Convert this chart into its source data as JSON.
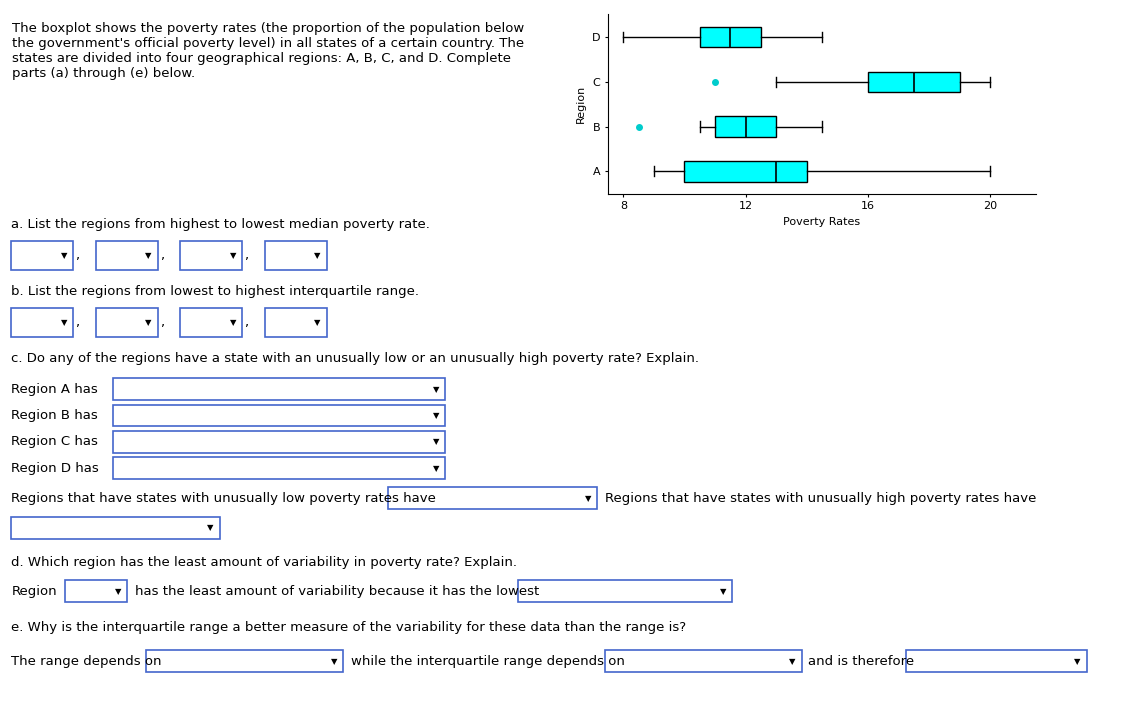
{
  "regions": [
    "A",
    "B",
    "C",
    "D"
  ],
  "boxes": {
    "A": {
      "whislo": 9.0,
      "q1": 10.0,
      "med": 13.0,
      "q3": 14.0,
      "whishi": 20.0,
      "fliers": []
    },
    "B": {
      "whislo": 10.5,
      "q1": 11.0,
      "med": 12.0,
      "q3": 13.0,
      "whishi": 14.5,
      "fliers": [
        8.5
      ]
    },
    "C": {
      "whislo": 13.0,
      "q1": 16.0,
      "med": 17.5,
      "q3": 19.0,
      "whishi": 20.0,
      "fliers": [
        11.0
      ]
    },
    "D": {
      "whislo": 8.0,
      "q1": 10.5,
      "med": 11.5,
      "q3": 12.5,
      "whishi": 14.5,
      "fliers": []
    }
  },
  "xlim": [
    7.5,
    21.5
  ],
  "xticks": [
    8,
    12,
    16,
    20
  ],
  "xlabel": "Poverty Rates",
  "ylabel": "Region",
  "box_color": "#00FFFF",
  "box_edge_color": "#000000",
  "median_color": "#000000",
  "whisker_color": "#000000",
  "flier_color": "#00CCCC",
  "flier_marker": "o",
  "flier_size": 4,
  "background_color": "#ffffff",
  "page_bg": "#f0f0f0",
  "figsize": [
    11.26,
    7.18
  ],
  "dpi": 100,
  "intro_text": "The boxplot shows the poverty rates (the proportion of the population below\nthe government's official poverty level) in all states of a certain country. The\nstates are divided into four geographical regions: A, B, C, and D. Complete\nparts (a) through (e) below.",
  "q_a": "a. List the regions from highest to lowest median poverty rate.",
  "q_b": "b. List the regions from lowest to highest interquartile range.",
  "q_c": "c. Do any of the regions have a state with an unusually low or an unusually high poverty rate? Explain.",
  "q_d": "d. Which region has the least amount of variability in poverty rate? Explain.",
  "q_e": "e. Why is the interquartile range a better measure of the variability for these data than the range is?",
  "region_a_label": "Region A has",
  "region_b_label": "Region B has",
  "region_c_label": "Region C has",
  "region_d_label": "Region D has",
  "low_label": "Regions that have states with unusually low poverty rates have",
  "high_label": "Regions that have states with unusually high poverty rates have",
  "variability_label": "Region",
  "variability_text": "has the least amount of variability because it has the lowest",
  "range_text": "The range depends on",
  "iqr_text": "while the interquartile range depends on",
  "therefore_text": "and is therefore",
  "divider_color": "#5577cc",
  "top_divider_color": "#cccccc",
  "dropdown_border": "#4466cc",
  "text_color": "#000000",
  "text_fontsize": 9.5
}
